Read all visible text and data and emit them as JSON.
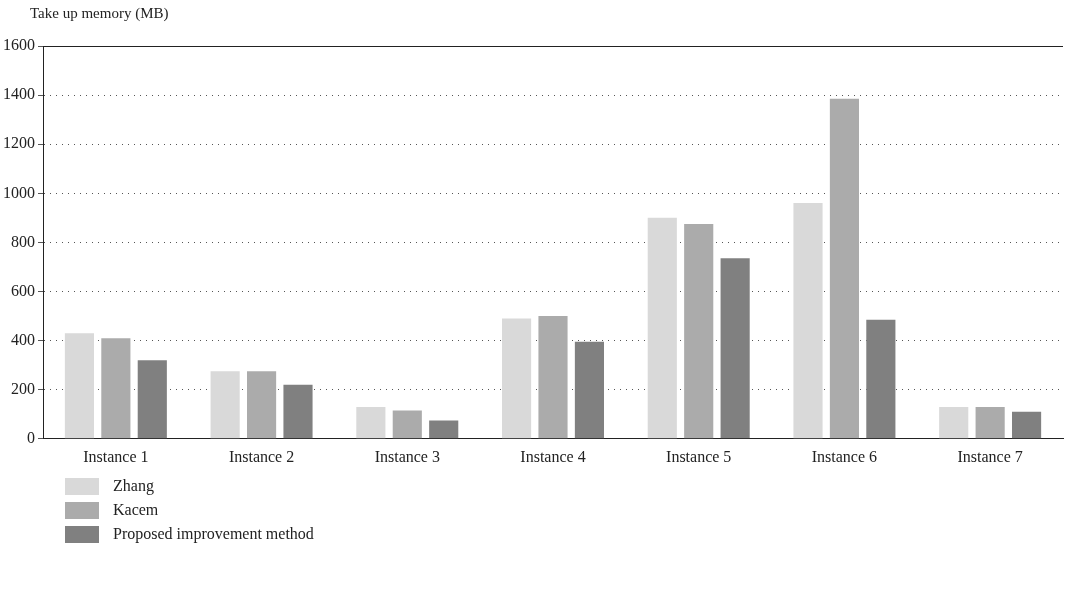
{
  "chart_data": {
    "type": "bar",
    "ylabel": "Take up memory (MB)",
    "categories": [
      "Instance 1",
      "Instance 2",
      "Instance 3",
      "Instance 4",
      "Instance 5",
      "Instance 6",
      "Instance 7"
    ],
    "series": [
      {
        "name": "Zhang",
        "color": "#d9d9d9",
        "values": [
          430,
          275,
          130,
          490,
          900,
          960,
          130
        ]
      },
      {
        "name": "Kacem",
        "color": "#ababab",
        "values": [
          410,
          275,
          115,
          500,
          875,
          1385,
          130
        ]
      },
      {
        "name": "Proposed improvement method",
        "color": "#808080",
        "values": [
          320,
          220,
          75,
          395,
          735,
          485,
          110
        ]
      }
    ],
    "ylim": [
      0,
      1600
    ],
    "yticks": [
      0,
      200,
      400,
      600,
      800,
      1000,
      1200,
      1400,
      1600
    ],
    "grid": "y",
    "legend": "bottom left"
  }
}
